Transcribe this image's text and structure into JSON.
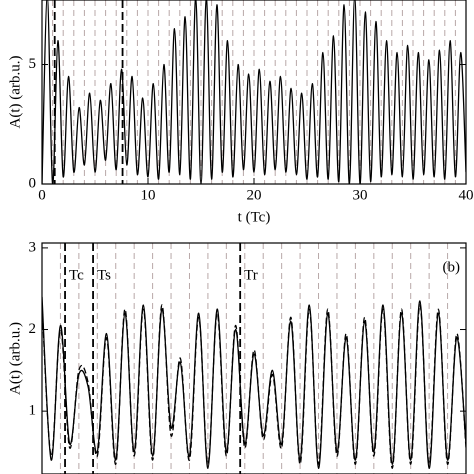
{
  "chart_data": [
    {
      "type": "line",
      "xlabel": "t (Tc)",
      "ylabel": "A(t) (arb.u.)",
      "xlim": [
        0,
        40
      ],
      "xticks": [
        0,
        10,
        20,
        30,
        40
      ],
      "ylim": [
        0,
        7.7
      ],
      "yticks": [
        0,
        5
      ],
      "vlines": [
        1,
        2,
        3,
        4,
        5,
        6,
        7,
        8,
        9,
        10,
        11,
        12,
        13,
        14,
        15,
        16,
        17,
        18,
        19,
        20,
        21,
        22,
        23,
        24,
        25,
        26,
        27,
        28,
        29,
        30,
        31,
        32,
        33,
        34,
        35,
        36,
        37,
        38,
        39
      ],
      "vline_color": "#b8a8a8",
      "event_lines": [
        {
          "x": 1.2
        },
        {
          "x": 7.6
        }
      ],
      "x": [
        0,
        0.5,
        1,
        1.5,
        2,
        2.5,
        3,
        3.5,
        4,
        4.5,
        5,
        5.5,
        6,
        6.5,
        7,
        7.5,
        8,
        8.5,
        9,
        9.5,
        10,
        10.5,
        11,
        11.5,
        12,
        12.5,
        13,
        13.5,
        14,
        14.5,
        15,
        15.5,
        16,
        16.5,
        17,
        17.5,
        18,
        18.5,
        19,
        19.5,
        20,
        20.5,
        21,
        21.5,
        22,
        22.5,
        23,
        23.5,
        24,
        24.5,
        25,
        25.5,
        26,
        26.5,
        27,
        27.5,
        28,
        28.5,
        29,
        29.5,
        30,
        30.5,
        31,
        31.5,
        32,
        32.5,
        33,
        33.5,
        34,
        34.5,
        35,
        35.5,
        36,
        36.5,
        37,
        37.5,
        38,
        38.5,
        39,
        39.5,
        40
      ],
      "series": [
        {
          "color": "#000000",
          "dash": "solid",
          "values": [
            0,
            7.8,
            0,
            6,
            0.3,
            4.5,
            0.5,
            3.2,
            0.8,
            3.8,
            0.5,
            3.5,
            1,
            4.2,
            0.6,
            4.8,
            0.8,
            4.5,
            0.4,
            3.6,
            0.3,
            4.2,
            0.2,
            5,
            0.5,
            6.5,
            0.4,
            7,
            0.2,
            7.8,
            0,
            7.8,
            0.2,
            7.5,
            0.5,
            6,
            0.3,
            5,
            0.6,
            4.6,
            0.5,
            4.8,
            0.4,
            4.3,
            0.6,
            4.5,
            0.5,
            4,
            0.4,
            3.8,
            0.2,
            4.2,
            0.3,
            5.5,
            0.2,
            6.2,
            0.1,
            7.5,
            0,
            7.8,
            0,
            7.2,
            0.1,
            6.8,
            0.3,
            6,
            0.4,
            5.5,
            0.3,
            5.8,
            0.2,
            5.5,
            0.4,
            5.2,
            0.3,
            5.6,
            0.2,
            6,
            0.3,
            5.5,
            0.5
          ]
        }
      ]
    },
    {
      "type": "line",
      "ylabel": "A(t)  (arb.u.)",
      "panel_label": "(b)",
      "xlim": [
        0,
        23
      ],
      "ylim": [
        0.23,
        3.06
      ],
      "yticks": [
        1,
        2,
        3
      ],
      "vlines": [
        1,
        2,
        3,
        4,
        5,
        6,
        7,
        8,
        9,
        10,
        11,
        12,
        13,
        14,
        15,
        16,
        17,
        18,
        19,
        20,
        21,
        22
      ],
      "vline_color": "#b8a8a8",
      "event_lines": [
        {
          "x": 1.25,
          "text": "Tc"
        },
        {
          "x": 2.77,
          "text": "Ts"
        },
        {
          "x": 10.75,
          "text": "Tr"
        }
      ],
      "x": [
        0,
        0.5,
        1,
        1.5,
        2,
        2.5,
        3,
        3.5,
        4,
        4.5,
        5,
        5.5,
        6,
        6.5,
        7,
        7.5,
        8,
        8.5,
        9,
        9.5,
        10,
        10.5,
        11,
        11.5,
        12,
        12.5,
        13,
        13.5,
        14,
        14.5,
        15,
        15.5,
        16,
        16.5,
        17,
        17.5,
        18,
        18.5,
        19,
        19.5,
        20,
        20.5,
        21,
        21.5,
        22,
        22.5,
        23
      ],
      "series": [
        {
          "color": "#000000",
          "dash": "solid",
          "values": [
            2.4,
            0.4,
            2.05,
            0.6,
            1.45,
            1.3,
            0.5,
            1.95,
            0.4,
            2.2,
            0.5,
            2.3,
            0.45,
            2.25,
            0.8,
            1.6,
            0.45,
            2.2,
            0.3,
            2.25,
            0.5,
            2.0,
            0.6,
            1.7,
            0.7,
            1.5,
            0.6,
            2.1,
            0.4,
            2.3,
            0.3,
            2.2,
            0.5,
            1.9,
            0.4,
            2.1,
            0.5,
            2.3,
            0.35,
            2.2,
            0.4,
            2.35,
            0.3,
            2.2,
            0.4,
            1.9,
            0.6
          ]
        },
        {
          "color": "#000000",
          "dash": "dashed",
          "values": [
            2.3,
            0.45,
            2.0,
            0.55,
            1.5,
            1.35,
            0.45,
            1.9,
            0.35,
            2.25,
            0.45,
            2.25,
            0.4,
            2.3,
            0.7,
            1.65,
            0.4,
            2.15,
            0.35,
            2.2,
            0.45,
            2.05,
            0.55,
            1.75,
            0.65,
            1.45,
            0.55,
            2.15,
            0.35,
            2.25,
            0.35,
            2.25,
            0.45,
            1.95,
            0.35,
            2.15,
            0.45,
            2.25,
            0.3,
            2.25,
            0.35,
            2.3,
            0.35,
            2.25,
            0.35,
            1.95,
            0.55
          ]
        }
      ]
    }
  ]
}
